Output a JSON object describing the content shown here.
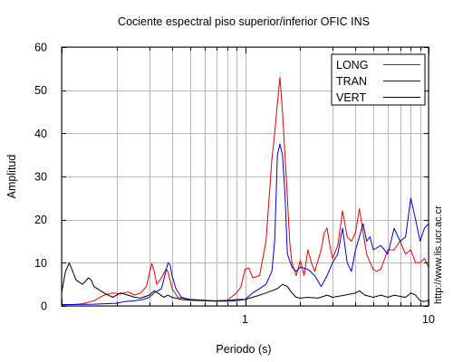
{
  "chart_data": {
    "type": "line",
    "title": "Cociente espectral piso superior/inferior  OFIC INS",
    "xlabel": "Periodo (s)",
    "ylabel": "Amplitud",
    "x_scale": "log",
    "xlim": [
      0.1,
      10
    ],
    "ylim": [
      0,
      60
    ],
    "grid": true,
    "legend_position": "top-right",
    "x_tick_labels": [
      {
        "value": 1,
        "label": "1"
      },
      {
        "value": 10,
        "label": "10"
      }
    ],
    "y_tick_labels": [
      {
        "value": 0,
        "label": "0"
      },
      {
        "value": 10,
        "label": "10"
      },
      {
        "value": 20,
        "label": "20"
      },
      {
        "value": 30,
        "label": "30"
      },
      {
        "value": 40,
        "label": "40"
      },
      {
        "value": 50,
        "label": "50"
      },
      {
        "value": 60,
        "label": "60"
      }
    ],
    "side_text": "http://www.lis.ucr.ac.cr",
    "series": [
      {
        "name": "LONG",
        "color": "#e00000",
        "points": [
          [
            0.1,
            0.3
          ],
          [
            0.115,
            0.3
          ],
          [
            0.13,
            0.5
          ],
          [
            0.15,
            1.2
          ],
          [
            0.17,
            2.5
          ],
          [
            0.19,
            3.0
          ],
          [
            0.21,
            2.8
          ],
          [
            0.23,
            3.2
          ],
          [
            0.25,
            2.5
          ],
          [
            0.27,
            3.0
          ],
          [
            0.29,
            4.5
          ],
          [
            0.31,
            9.8
          ],
          [
            0.32,
            8.0
          ],
          [
            0.33,
            5.0
          ],
          [
            0.35,
            6.5
          ],
          [
            0.37,
            8.5
          ],
          [
            0.38,
            8.0
          ],
          [
            0.4,
            4.0
          ],
          [
            0.43,
            2.0
          ],
          [
            0.5,
            1.5
          ],
          [
            0.6,
            1.2
          ],
          [
            0.7,
            1.2
          ],
          [
            0.8,
            1.3
          ],
          [
            0.9,
            3.0
          ],
          [
            0.95,
            4.5
          ],
          [
            1.0,
            8.5
          ],
          [
            1.05,
            8.8
          ],
          [
            1.1,
            6.5
          ],
          [
            1.2,
            7.0
          ],
          [
            1.3,
            15.0
          ],
          [
            1.4,
            34.0
          ],
          [
            1.45,
            40.0
          ],
          [
            1.5,
            47.0
          ],
          [
            1.55,
            53.0
          ],
          [
            1.6,
            45.0
          ],
          [
            1.65,
            35.0
          ],
          [
            1.7,
            25.0
          ],
          [
            1.75,
            15.0
          ],
          [
            1.8,
            10.0
          ],
          [
            1.9,
            7.0
          ],
          [
            2.0,
            10.5
          ],
          [
            2.1,
            7.0
          ],
          [
            2.2,
            13.0
          ],
          [
            2.3,
            10.0
          ],
          [
            2.4,
            8.0
          ],
          [
            2.6,
            13.0
          ],
          [
            2.7,
            17.0
          ],
          [
            2.8,
            18.0
          ],
          [
            2.9,
            14.0
          ],
          [
            3.0,
            11.0
          ],
          [
            3.2,
            14.0
          ],
          [
            3.4,
            22.0
          ],
          [
            3.6,
            16.0
          ],
          [
            3.8,
            15.0
          ],
          [
            4.0,
            17.0
          ],
          [
            4.2,
            22.5
          ],
          [
            4.4,
            17.0
          ],
          [
            4.6,
            12.0
          ],
          [
            4.8,
            10.0
          ],
          [
            5.0,
            8.5
          ],
          [
            5.2,
            8.0
          ],
          [
            5.5,
            8.5
          ],
          [
            6.0,
            13.0
          ],
          [
            6.5,
            13.0
          ],
          [
            7.0,
            15.0
          ],
          [
            7.5,
            12.0
          ],
          [
            8.0,
            13.0
          ],
          [
            8.5,
            10.0
          ],
          [
            9.0,
            10.0
          ],
          [
            9.5,
            11.0
          ],
          [
            10.0,
            9.0
          ]
        ]
      },
      {
        "name": "TRAN",
        "color": "#0000cc",
        "points": [
          [
            0.1,
            0.3
          ],
          [
            0.15,
            0.4
          ],
          [
            0.2,
            0.6
          ],
          [
            0.22,
            1.0
          ],
          [
            0.25,
            1.2
          ],
          [
            0.28,
            1.5
          ],
          [
            0.3,
            2.0
          ],
          [
            0.32,
            3.0
          ],
          [
            0.35,
            4.0
          ],
          [
            0.37,
            8.0
          ],
          [
            0.38,
            10.0
          ],
          [
            0.39,
            9.5
          ],
          [
            0.4,
            7.0
          ],
          [
            0.42,
            4.0
          ],
          [
            0.45,
            2.0
          ],
          [
            0.5,
            1.5
          ],
          [
            0.6,
            1.3
          ],
          [
            0.7,
            1.1
          ],
          [
            0.8,
            1.1
          ],
          [
            0.9,
            1.2
          ],
          [
            1.0,
            1.5
          ],
          [
            1.1,
            3.0
          ],
          [
            1.2,
            4.0
          ],
          [
            1.3,
            5.0
          ],
          [
            1.4,
            8.0
          ],
          [
            1.45,
            15.0
          ],
          [
            1.5,
            35.0
          ],
          [
            1.55,
            37.5
          ],
          [
            1.6,
            35.0
          ],
          [
            1.65,
            26.0
          ],
          [
            1.7,
            12.0
          ],
          [
            1.8,
            9.0
          ],
          [
            1.9,
            8.0
          ],
          [
            2.0,
            9.0
          ],
          [
            2.2,
            8.5
          ],
          [
            2.4,
            7.0
          ],
          [
            2.6,
            4.5
          ],
          [
            2.8,
            7.0
          ],
          [
            3.0,
            10.0
          ],
          [
            3.2,
            12.0
          ],
          [
            3.4,
            18.0
          ],
          [
            3.6,
            10.0
          ],
          [
            3.8,
            8.0
          ],
          [
            4.0,
            13.0
          ],
          [
            4.2,
            16.0
          ],
          [
            4.4,
            19.0
          ],
          [
            4.6,
            15.0
          ],
          [
            4.8,
            16.0
          ],
          [
            5.0,
            13.0
          ],
          [
            5.5,
            14.0
          ],
          [
            6.0,
            12.0
          ],
          [
            6.5,
            18.0
          ],
          [
            7.0,
            15.0
          ],
          [
            7.5,
            16.0
          ],
          [
            8.0,
            25.0
          ],
          [
            8.5,
            20.0
          ],
          [
            9.0,
            15.0
          ],
          [
            9.5,
            18.0
          ],
          [
            10.0,
            19.0
          ]
        ]
      },
      {
        "name": "VERT",
        "color": "#000000",
        "points": [
          [
            0.1,
            3.0
          ],
          [
            0.105,
            8.0
          ],
          [
            0.11,
            10.0
          ],
          [
            0.115,
            8.0
          ],
          [
            0.12,
            6.0
          ],
          [
            0.13,
            5.0
          ],
          [
            0.14,
            6.5
          ],
          [
            0.145,
            6.0
          ],
          [
            0.15,
            4.5
          ],
          [
            0.17,
            3.0
          ],
          [
            0.19,
            2.0
          ],
          [
            0.21,
            3.0
          ],
          [
            0.23,
            2.5
          ],
          [
            0.25,
            2.0
          ],
          [
            0.27,
            1.8
          ],
          [
            0.3,
            2.5
          ],
          [
            0.32,
            3.5
          ],
          [
            0.34,
            2.8
          ],
          [
            0.36,
            2.0
          ],
          [
            0.38,
            2.5
          ],
          [
            0.4,
            2.0
          ],
          [
            0.45,
            1.5
          ],
          [
            0.5,
            1.3
          ],
          [
            0.6,
            1.2
          ],
          [
            0.7,
            1.1
          ],
          [
            0.8,
            1.2
          ],
          [
            0.9,
            1.5
          ],
          [
            1.0,
            1.5
          ],
          [
            1.1,
            2.0
          ],
          [
            1.2,
            2.5
          ],
          [
            1.3,
            3.0
          ],
          [
            1.4,
            3.5
          ],
          [
            1.5,
            4.0
          ],
          [
            1.6,
            5.0
          ],
          [
            1.7,
            4.5
          ],
          [
            1.8,
            3.0
          ],
          [
            1.9,
            2.0
          ],
          [
            2.0,
            1.8
          ],
          [
            2.2,
            2.0
          ],
          [
            2.5,
            1.8
          ],
          [
            2.8,
            2.5
          ],
          [
            3.0,
            2.0
          ],
          [
            3.5,
            2.5
          ],
          [
            4.0,
            3.0
          ],
          [
            4.2,
            3.5
          ],
          [
            4.5,
            2.5
          ],
          [
            5.0,
            2.0
          ],
          [
            5.5,
            2.5
          ],
          [
            6.0,
            2.0
          ],
          [
            6.5,
            2.5
          ],
          [
            7.0,
            2.2
          ],
          [
            7.5,
            2.0
          ],
          [
            8.0,
            3.0
          ],
          [
            8.5,
            2.5
          ],
          [
            9.0,
            1.2
          ],
          [
            9.5,
            1.0
          ],
          [
            10.0,
            1.3
          ]
        ]
      }
    ]
  }
}
